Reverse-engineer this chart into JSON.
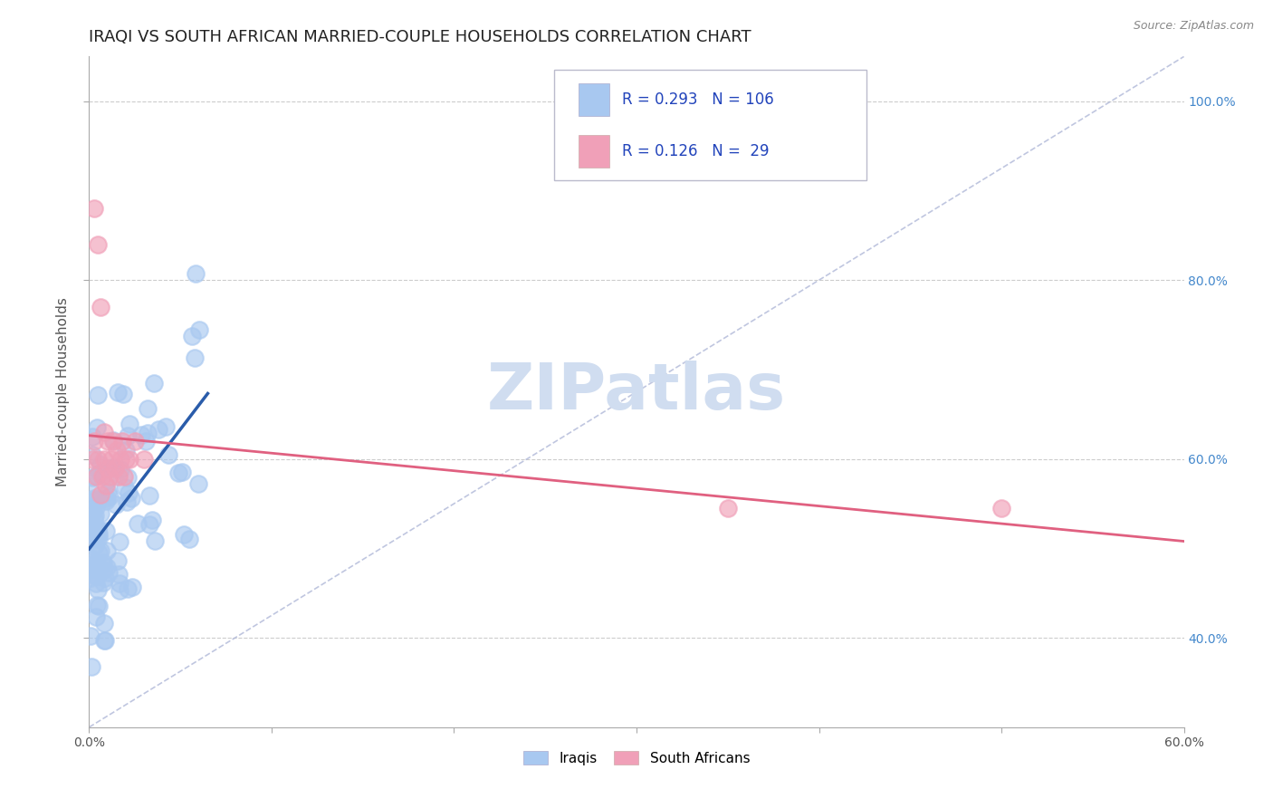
{
  "title": "IRAQI VS SOUTH AFRICAN MARRIED-COUPLE HOUSEHOLDS CORRELATION CHART",
  "source": "Source: ZipAtlas.com",
  "ylabel": "Married-couple Households",
  "xlim": [
    0.0,
    0.6
  ],
  "ylim": [
    0.3,
    1.05
  ],
  "yticks": [
    0.4,
    0.6,
    0.8,
    1.0
  ],
  "ytick_labels": [
    "40.0%",
    "60.0%",
    "80.0%",
    "100.0%"
  ],
  "xticks": [
    0.0,
    0.1,
    0.2,
    0.3,
    0.4,
    0.5,
    0.6
  ],
  "xtick_labels": [
    "0.0%",
    "",
    "",
    "",
    "",
    "",
    "60.0%"
  ],
  "watermark": "ZIPatlas",
  "diag_line_color": "#b0b8d8",
  "iraqi_line_color": "#2a5caa",
  "sa_line_color": "#e06080",
  "iraqi_dot_color": "#a8c8f0",
  "sa_dot_color": "#f0a0b8",
  "background_color": "#ffffff",
  "grid_color": "#cccccc",
  "title_color": "#222222",
  "watermark_color": "#d0ddf0",
  "legend_box_color": "#ddddee",
  "tick_label_color_right": "#4488cc",
  "title_fontsize": 13,
  "axis_label_fontsize": 11,
  "tick_fontsize": 10
}
